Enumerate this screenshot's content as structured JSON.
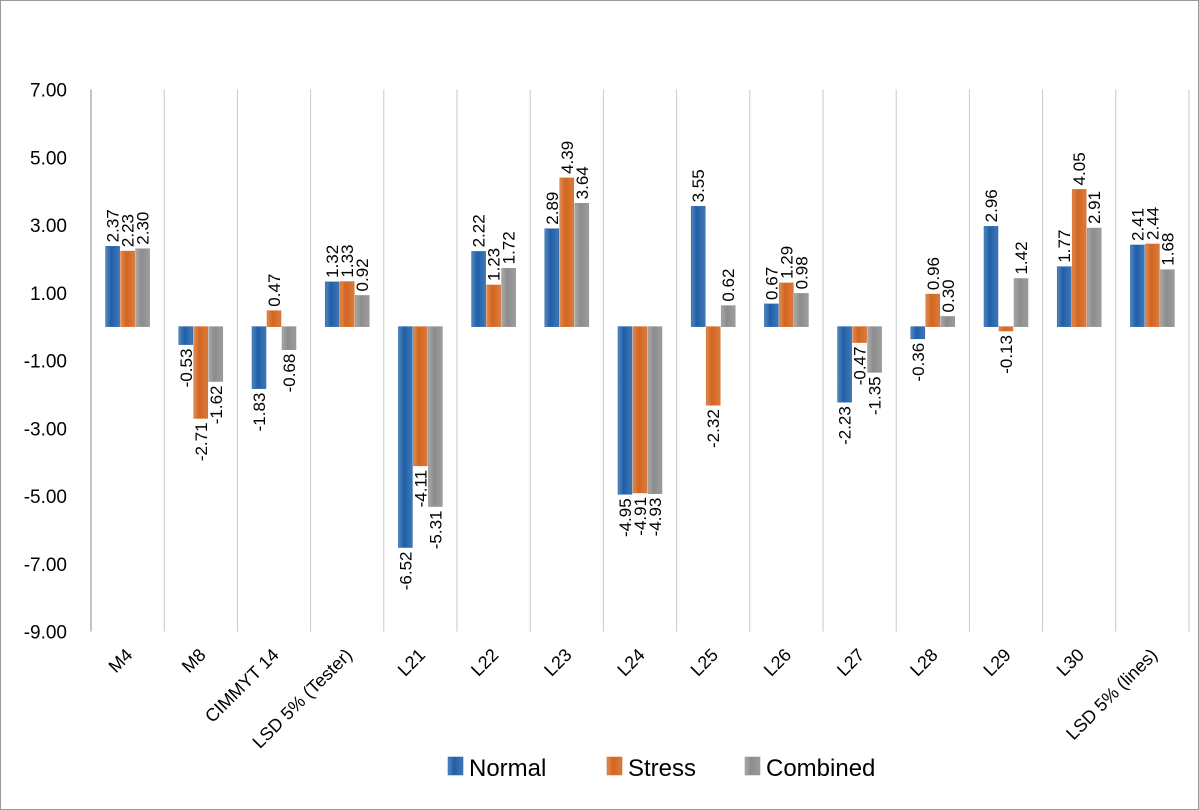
{
  "chart_data": {
    "type": "bar",
    "title": "",
    "xlabel": "",
    "ylabel": "",
    "ylim": [
      -9,
      7
    ],
    "y_ticks": [
      "7.00",
      "5.00",
      "3.00",
      "1.00",
      "-1.00",
      "-3.00",
      "-5.00",
      "-7.00",
      "-9.00"
    ],
    "y_tick_values": [
      7,
      5,
      3,
      1,
      -1,
      -3,
      -5,
      -7,
      -9
    ],
    "grid": "vertical",
    "legend_position": "bottom",
    "categories": [
      "M4",
      "M8",
      "CIMMYT 14",
      "LSD 5% (Tester)",
      "L21",
      "L22",
      "L23",
      "L24",
      "L25",
      "L26",
      "L27",
      "L28",
      "L29",
      "L30",
      "LSD 5% (lines)"
    ],
    "series": [
      {
        "name": "Normal",
        "color": "#1f5fa8",
        "values": [
          2.37,
          -0.53,
          -1.83,
          1.32,
          -6.52,
          2.22,
          2.89,
          -4.95,
          3.55,
          0.67,
          -2.23,
          -0.36,
          2.96,
          1.77,
          2.41
        ],
        "labels": [
          "2.37",
          "-0.53",
          "-1.83",
          "1.32",
          "-6.52",
          "2.22",
          "2.89",
          "-4.95",
          "3.55",
          "0.67",
          "-2.23",
          "-0.36",
          "2.96",
          "1.77",
          "2.41"
        ]
      },
      {
        "name": "Stress",
        "color": "#d3651e",
        "values": [
          2.23,
          -2.71,
          0.47,
          1.33,
          -4.11,
          1.23,
          4.39,
          -4.91,
          -2.32,
          1.29,
          -0.47,
          0.96,
          -0.13,
          4.05,
          2.44
        ],
        "labels": [
          "2.23",
          "-2.71",
          "0.47",
          "1.33",
          "-4.11",
          "1.23",
          "4.39",
          "-4.91",
          "-2.32",
          "1.29",
          "-0.47",
          "0.96",
          "-0.13",
          "4.05",
          "2.44"
        ]
      },
      {
        "name": "Combined",
        "color": "#8c8c8c",
        "values": [
          2.3,
          -1.62,
          -0.68,
          0.92,
          -5.31,
          1.72,
          3.64,
          -4.93,
          0.62,
          0.98,
          -1.35,
          0.3,
          1.42,
          2.91,
          1.68
        ],
        "labels": [
          "2.30",
          "-1.62",
          "-0.68",
          "0.92",
          "-5.31",
          "1.72",
          "3.64",
          "-4.93",
          "0.62",
          "0.98",
          "-1.35",
          "0.30",
          "1.42",
          "2.91",
          "1.68"
        ]
      }
    ]
  }
}
